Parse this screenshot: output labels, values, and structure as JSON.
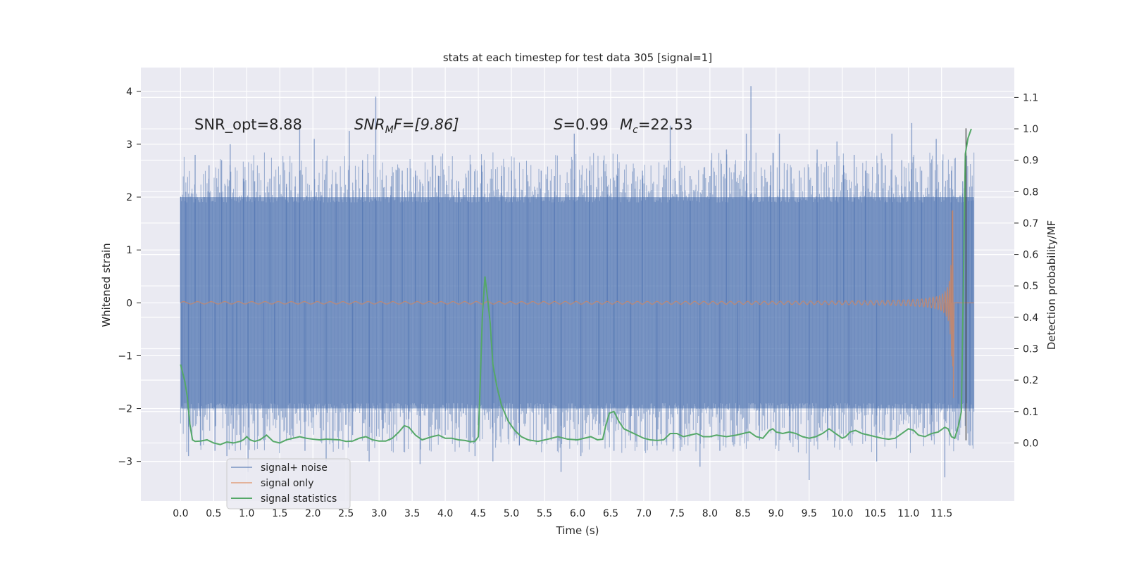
{
  "chart_data": {
    "type": "line",
    "title": "stats at each timestep for test data 305 [signal=1]",
    "xlabel": "Time (s)",
    "ylabel": "Whitened strain",
    "y2label": "Detection probability/MF",
    "xlim": [
      -0.6,
      12.6
    ],
    "ylim": [
      -3.75,
      4.45
    ],
    "y2lim": [
      -0.185,
      1.195
    ],
    "xticks": [
      0.0,
      0.5,
      1.0,
      1.5,
      2.0,
      2.5,
      3.0,
      3.5,
      4.0,
      4.5,
      5.0,
      5.5,
      6.0,
      6.5,
      7.0,
      7.5,
      8.0,
      8.5,
      9.0,
      9.5,
      10.0,
      10.5,
      11.0,
      11.5
    ],
    "xtick_labels": [
      "0.0",
      "0.5",
      "1.0",
      "1.5",
      "2.0",
      "2.5",
      "3.0",
      "3.5",
      "4.0",
      "4.5",
      "5.0",
      "5.5",
      "6.0",
      "6.5",
      "7.0",
      "7.5",
      "8.0",
      "8.5",
      "9.0",
      "9.5",
      "10.0",
      "10.5",
      "11.0",
      "11.5"
    ],
    "yticks": [
      -3,
      -2,
      -1,
      0,
      1,
      2,
      3,
      4
    ],
    "ytick_labels": [
      "−3",
      "−2",
      "−1",
      "0",
      "1",
      "2",
      "3",
      "4"
    ],
    "y2ticks": [
      0.0,
      0.1,
      0.2,
      0.3,
      0.4,
      0.5,
      0.6,
      0.7,
      0.8,
      0.9,
      1.0,
      1.1
    ],
    "y2tick_labels": [
      "0.0",
      "0.1",
      "0.2",
      "0.3",
      "0.4",
      "0.5",
      "0.6",
      "0.7",
      "0.8",
      "0.9",
      "1.0",
      "1.1"
    ],
    "grid": true,
    "legend_position": "lower-left",
    "colors": {
      "background": "#eaeaf2",
      "noise": "#4c72b0",
      "signal": "#dd8452",
      "stats": "#55a868",
      "grid": "#ffffff",
      "vline": "#333333"
    },
    "annotations": {
      "snr_opt": "SNR_opt=8.88",
      "snr_mf_prefix": "SNR",
      "snr_mf_sub": "M",
      "snr_mf_suffix": "F=[9.86]",
      "s_prefix": "S",
      "s_value": "=0.99",
      "mc_prefix": "M",
      "mc_sub": "c",
      "mc_value": "=22.53"
    },
    "series": [
      {
        "name": "signal+ noise",
        "kind": "noise",
        "t_range": [
          0.0,
          11.99
        ],
        "band": [
          -2.0,
          2.0
        ],
        "extremes": [
          [
            0.0,
            2.0
          ],
          [
            0.02,
            -1.95
          ],
          [
            0.08,
            2.1
          ],
          [
            0.12,
            -2.9
          ],
          [
            0.22,
            2.8
          ],
          [
            0.3,
            -2.7
          ],
          [
            0.43,
            2.6
          ],
          [
            0.52,
            -2.8
          ],
          [
            0.62,
            2.7
          ],
          [
            0.7,
            -2.9
          ],
          [
            0.75,
            3.0
          ],
          [
            0.78,
            -2.7
          ],
          [
            0.85,
            -2.5
          ],
          [
            0.95,
            2.35
          ],
          [
            1.02,
            -3.2
          ],
          [
            1.12,
            2.3
          ],
          [
            1.25,
            -2.6
          ],
          [
            1.35,
            2.35
          ],
          [
            1.42,
            -2.2
          ],
          [
            1.6,
            2.25
          ],
          [
            1.65,
            -2.5
          ],
          [
            1.73,
            2.2
          ],
          [
            1.8,
            3.35
          ],
          [
            1.88,
            -2.8
          ],
          [
            2.02,
            3.1
          ],
          [
            2.12,
            2.1
          ],
          [
            2.2,
            -3.0
          ],
          [
            2.35,
            2.25
          ],
          [
            2.55,
            3.25
          ],
          [
            2.6,
            -2.5
          ],
          [
            2.75,
            2.7
          ],
          [
            2.85,
            -3.0
          ],
          [
            2.95,
            3.9
          ],
          [
            3.05,
            -2.6
          ],
          [
            3.18,
            2.2
          ],
          [
            3.35,
            2.5
          ],
          [
            3.45,
            -2.2
          ],
          [
            3.55,
            2.5
          ],
          [
            3.62,
            -3.05
          ],
          [
            3.75,
            2.3
          ],
          [
            3.9,
            2.4
          ],
          [
            4.0,
            -2.5
          ],
          [
            4.2,
            2.3
          ],
          [
            4.35,
            2.5
          ],
          [
            4.45,
            -2.9
          ],
          [
            4.55,
            2.6
          ],
          [
            4.72,
            -3.0
          ],
          [
            4.85,
            2.4
          ],
          [
            5.0,
            2.5
          ],
          [
            5.12,
            -2.7
          ],
          [
            5.25,
            2.3
          ],
          [
            5.45,
            2.5
          ],
          [
            5.6,
            -2.6
          ],
          [
            5.65,
            2.4
          ],
          [
            5.75,
            -3.2
          ],
          [
            5.95,
            3.2
          ],
          [
            6.05,
            -2.9
          ],
          [
            6.18,
            2.5
          ],
          [
            6.32,
            -2.5
          ],
          [
            6.45,
            2.2
          ],
          [
            6.55,
            -2.8
          ],
          [
            6.6,
            2.4
          ],
          [
            6.8,
            -2.6
          ],
          [
            6.98,
            2.5
          ],
          [
            7.2,
            -2.7
          ],
          [
            7.4,
            3.35
          ],
          [
            7.55,
            -2.8
          ],
          [
            7.7,
            2.4
          ],
          [
            7.85,
            -3.1
          ],
          [
            8.0,
            2.4
          ],
          [
            8.15,
            -2.8
          ],
          [
            8.25,
            2.9
          ],
          [
            8.42,
            -2.5
          ],
          [
            8.55,
            3.2
          ],
          [
            8.62,
            4.1
          ],
          [
            8.75,
            -2.6
          ],
          [
            8.92,
            2.6
          ],
          [
            9.05,
            3.2
          ],
          [
            9.2,
            -2.6
          ],
          [
            9.35,
            2.5
          ],
          [
            9.5,
            -3.35
          ],
          [
            9.62,
            2.9
          ],
          [
            9.78,
            -2.6
          ],
          [
            9.92,
            3.05
          ],
          [
            10.02,
            2.6
          ],
          [
            10.1,
            -2.6
          ],
          [
            10.18,
            2.8
          ],
          [
            10.35,
            2.5
          ],
          [
            10.52,
            -3.0
          ],
          [
            10.65,
            2.6
          ],
          [
            10.75,
            3.2
          ],
          [
            10.9,
            2.7
          ],
          [
            11.05,
            3.4
          ],
          [
            11.2,
            2.5
          ],
          [
            11.35,
            -2.6
          ],
          [
            11.42,
            3.1
          ],
          [
            11.55,
            -3.3
          ],
          [
            11.65,
            2.5
          ],
          [
            11.75,
            -2.6
          ],
          [
            11.82,
            2.3
          ],
          [
            11.9,
            2.0
          ],
          [
            11.93,
            -2.7
          ],
          [
            11.96,
            2.2
          ]
        ]
      },
      {
        "name": "signal only",
        "kind": "chirp",
        "t_range": [
          0.0,
          11.99
        ],
        "t_merger": 11.67,
        "peak_amplitude": 1.75,
        "trough_amplitude": -1.8
      },
      {
        "name": "signal statistics",
        "kind": "line",
        "axis": "right",
        "points": [
          [
            0.0,
            0.25
          ],
          [
            0.06,
            0.2
          ],
          [
            0.1,
            0.15
          ],
          [
            0.14,
            0.06
          ],
          [
            0.18,
            0.01
          ],
          [
            0.22,
            0.005
          ],
          [
            0.3,
            0.006
          ],
          [
            0.4,
            0.01
          ],
          [
            0.5,
            0.0
          ],
          [
            0.6,
            -0.005
          ],
          [
            0.7,
            0.003
          ],
          [
            0.8,
            0.0
          ],
          [
            0.9,
            0.005
          ],
          [
            0.95,
            0.01
          ],
          [
            1.0,
            0.02
          ],
          [
            1.05,
            0.01
          ],
          [
            1.12,
            0.005
          ],
          [
            1.2,
            0.01
          ],
          [
            1.3,
            0.025
          ],
          [
            1.4,
            0.005
          ],
          [
            1.5,
            0.0
          ],
          [
            1.6,
            0.01
          ],
          [
            1.7,
            0.015
          ],
          [
            1.8,
            0.02
          ],
          [
            1.9,
            0.015
          ],
          [
            2.0,
            0.012
          ],
          [
            2.1,
            0.01
          ],
          [
            2.2,
            0.012
          ],
          [
            2.4,
            0.01
          ],
          [
            2.5,
            0.005
          ],
          [
            2.6,
            0.006
          ],
          [
            2.7,
            0.015
          ],
          [
            2.8,
            0.02
          ],
          [
            2.9,
            0.01
          ],
          [
            3.0,
            0.006
          ],
          [
            3.1,
            0.006
          ],
          [
            3.2,
            0.015
          ],
          [
            3.3,
            0.035
          ],
          [
            3.38,
            0.055
          ],
          [
            3.45,
            0.05
          ],
          [
            3.55,
            0.025
          ],
          [
            3.65,
            0.01
          ],
          [
            3.8,
            0.02
          ],
          [
            3.9,
            0.025
          ],
          [
            4.0,
            0.015
          ],
          [
            4.1,
            0.015
          ],
          [
            4.2,
            0.01
          ],
          [
            4.3,
            0.008
          ],
          [
            4.38,
            0.004
          ],
          [
            4.45,
            0.005
          ],
          [
            4.5,
            0.02
          ],
          [
            4.53,
            0.2
          ],
          [
            4.56,
            0.4
          ],
          [
            4.6,
            0.53
          ],
          [
            4.64,
            0.46
          ],
          [
            4.68,
            0.38
          ],
          [
            4.72,
            0.25
          ],
          [
            4.78,
            0.18
          ],
          [
            4.85,
            0.12
          ],
          [
            4.95,
            0.07
          ],
          [
            5.05,
            0.04
          ],
          [
            5.15,
            0.02
          ],
          [
            5.25,
            0.01
          ],
          [
            5.4,
            0.005
          ],
          [
            5.55,
            0.012
          ],
          [
            5.7,
            0.02
          ],
          [
            5.85,
            0.012
          ],
          [
            6.0,
            0.01
          ],
          [
            6.1,
            0.015
          ],
          [
            6.2,
            0.02
          ],
          [
            6.3,
            0.01
          ],
          [
            6.38,
            0.012
          ],
          [
            6.42,
            0.05
          ],
          [
            6.48,
            0.095
          ],
          [
            6.55,
            0.1
          ],
          [
            6.62,
            0.07
          ],
          [
            6.7,
            0.045
          ],
          [
            6.8,
            0.035
          ],
          [
            6.9,
            0.025
          ],
          [
            7.0,
            0.015
          ],
          [
            7.1,
            0.01
          ],
          [
            7.2,
            0.008
          ],
          [
            7.3,
            0.01
          ],
          [
            7.4,
            0.03
          ],
          [
            7.5,
            0.03
          ],
          [
            7.6,
            0.02
          ],
          [
            7.7,
            0.025
          ],
          [
            7.8,
            0.03
          ],
          [
            7.9,
            0.02
          ],
          [
            8.0,
            0.02
          ],
          [
            8.1,
            0.025
          ],
          [
            8.25,
            0.02
          ],
          [
            8.4,
            0.025
          ],
          [
            8.5,
            0.03
          ],
          [
            8.6,
            0.035
          ],
          [
            8.7,
            0.02
          ],
          [
            8.8,
            0.015
          ],
          [
            8.9,
            0.04
          ],
          [
            8.95,
            0.045
          ],
          [
            9.0,
            0.035
          ],
          [
            9.1,
            0.03
          ],
          [
            9.2,
            0.035
          ],
          [
            9.3,
            0.03
          ],
          [
            9.4,
            0.02
          ],
          [
            9.5,
            0.015
          ],
          [
            9.6,
            0.02
          ],
          [
            9.7,
            0.03
          ],
          [
            9.8,
            0.045
          ],
          [
            9.9,
            0.03
          ],
          [
            10.0,
            0.015
          ],
          [
            10.05,
            0.02
          ],
          [
            10.12,
            0.035
          ],
          [
            10.2,
            0.04
          ],
          [
            10.3,
            0.03
          ],
          [
            10.4,
            0.025
          ],
          [
            10.5,
            0.02
          ],
          [
            10.6,
            0.015
          ],
          [
            10.7,
            0.012
          ],
          [
            10.8,
            0.015
          ],
          [
            10.9,
            0.03
          ],
          [
            11.0,
            0.045
          ],
          [
            11.08,
            0.04
          ],
          [
            11.15,
            0.025
          ],
          [
            11.25,
            0.02
          ],
          [
            11.35,
            0.03
          ],
          [
            11.45,
            0.035
          ],
          [
            11.55,
            0.05
          ],
          [
            11.6,
            0.045
          ],
          [
            11.65,
            0.02
          ],
          [
            11.7,
            0.015
          ],
          [
            11.75,
            0.05
          ],
          [
            11.8,
            0.1
          ],
          [
            11.83,
            0.5
          ],
          [
            11.86,
            0.92
          ],
          [
            11.9,
            0.97
          ],
          [
            11.95,
            1.0
          ]
        ]
      }
    ],
    "vline_x": 11.87
  }
}
